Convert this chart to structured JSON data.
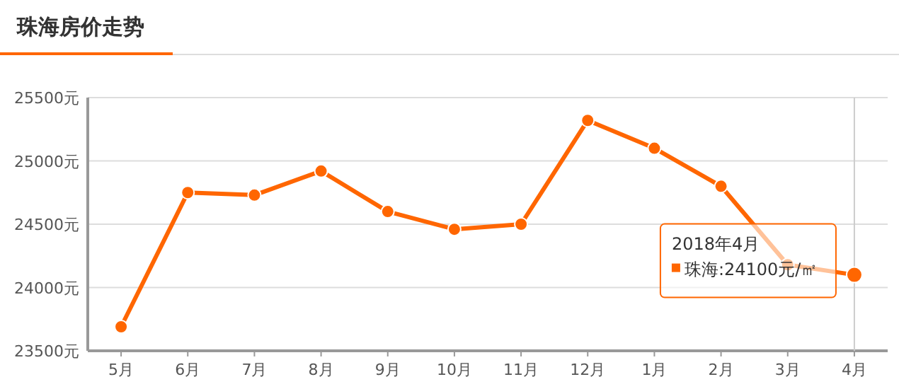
{
  "chart_data": {
    "type": "line",
    "title": "珠海房价走势",
    "categories": [
      "5月",
      "6月",
      "7月",
      "8月",
      "9月",
      "10月",
      "11月",
      "12月",
      "1月",
      "2月",
      "3月",
      "4月"
    ],
    "series": [
      {
        "color": "#ff6600",
        "values": [
          23690,
          24750,
          24730,
          24920,
          24600,
          24460,
          24500,
          25320,
          25100,
          24800,
          24180,
          24100
        ]
      }
    ],
    "ylim": [
      23500,
      25500
    ],
    "yticks": [
      {
        "value": 23500,
        "label": "23500元"
      },
      {
        "value": 24000,
        "label": "24000元"
      },
      {
        "value": 24500,
        "label": "24500元"
      },
      {
        "value": 25000,
        "label": "25000元"
      },
      {
        "value": 25500,
        "label": "25500元"
      }
    ],
    "grid": "y",
    "marker": "circle",
    "line_style": "solid",
    "ref_lines": [
      {
        "axis": "x",
        "value": "4月",
        "color": "#cccccc"
      }
    ],
    "annotations": [
      "2018年4月",
      "珠海:24100元/㎡"
    ]
  }
}
